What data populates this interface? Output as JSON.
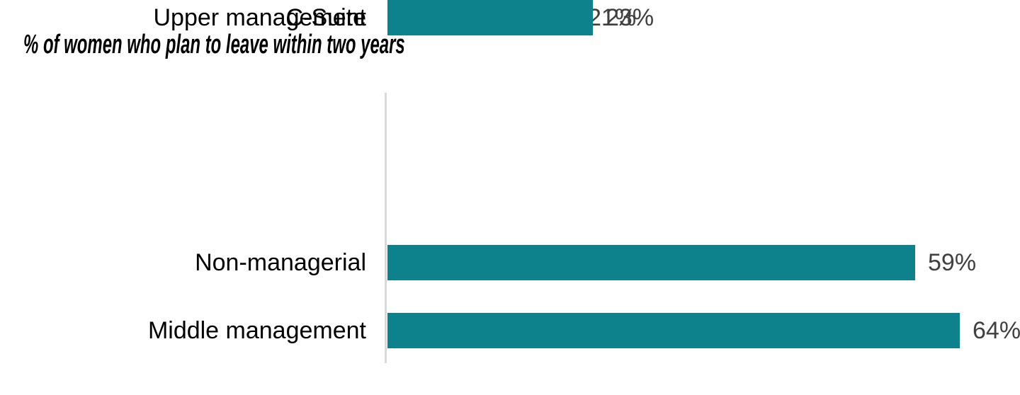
{
  "colors": {
    "bar": "#0E828C",
    "axis_line": "#D9D9D9",
    "value_label": "#404040",
    "category_label": "#000000",
    "background": "#FFFFFF"
  },
  "chart_data": {
    "type": "bar",
    "orientation": "horizontal",
    "title": "% of women who plan to leave within two years",
    "categories": [
      "Non-managerial",
      "Middle management",
      "Upper management",
      "C-Suite"
    ],
    "values": [
      59,
      64,
      21,
      23
    ],
    "value_labels": [
      "59%",
      "64%",
      "21%",
      "23%"
    ],
    "unit": "%",
    "xlim": [
      0,
      70
    ],
    "grid": false,
    "legend": false,
    "value_labels_position": "end-of-bar"
  }
}
